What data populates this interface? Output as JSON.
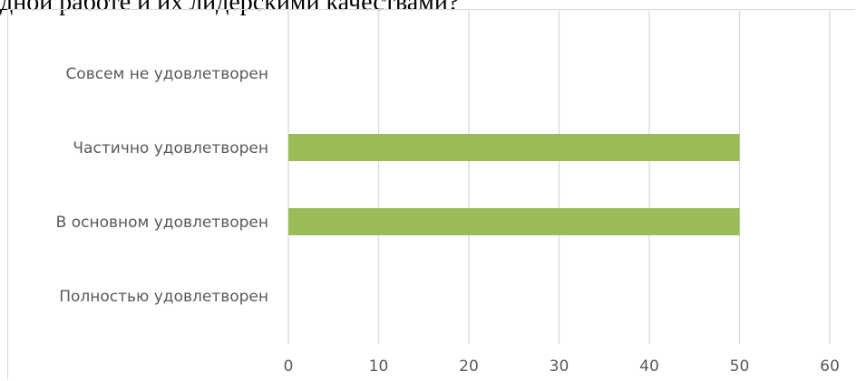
{
  "header": {
    "text": "дной работе и их лидерскими качествами?"
  },
  "chart_data": {
    "type": "bar",
    "orientation": "horizontal",
    "categories": [
      "Совсем не удовлетворен",
      "Частично удовлетворен",
      "В основном удовлетворен",
      "Полностью удовлетворен"
    ],
    "values": [
      0,
      50,
      50,
      0
    ],
    "xticks": [
      0,
      10,
      20,
      30,
      40,
      50,
      60
    ],
    "xlim": [
      0,
      60
    ],
    "grid": "vertical",
    "legend": "none",
    "bar_color": "#9bbb59",
    "grid_color": "#d9d9d9",
    "label_color": "#595959"
  }
}
